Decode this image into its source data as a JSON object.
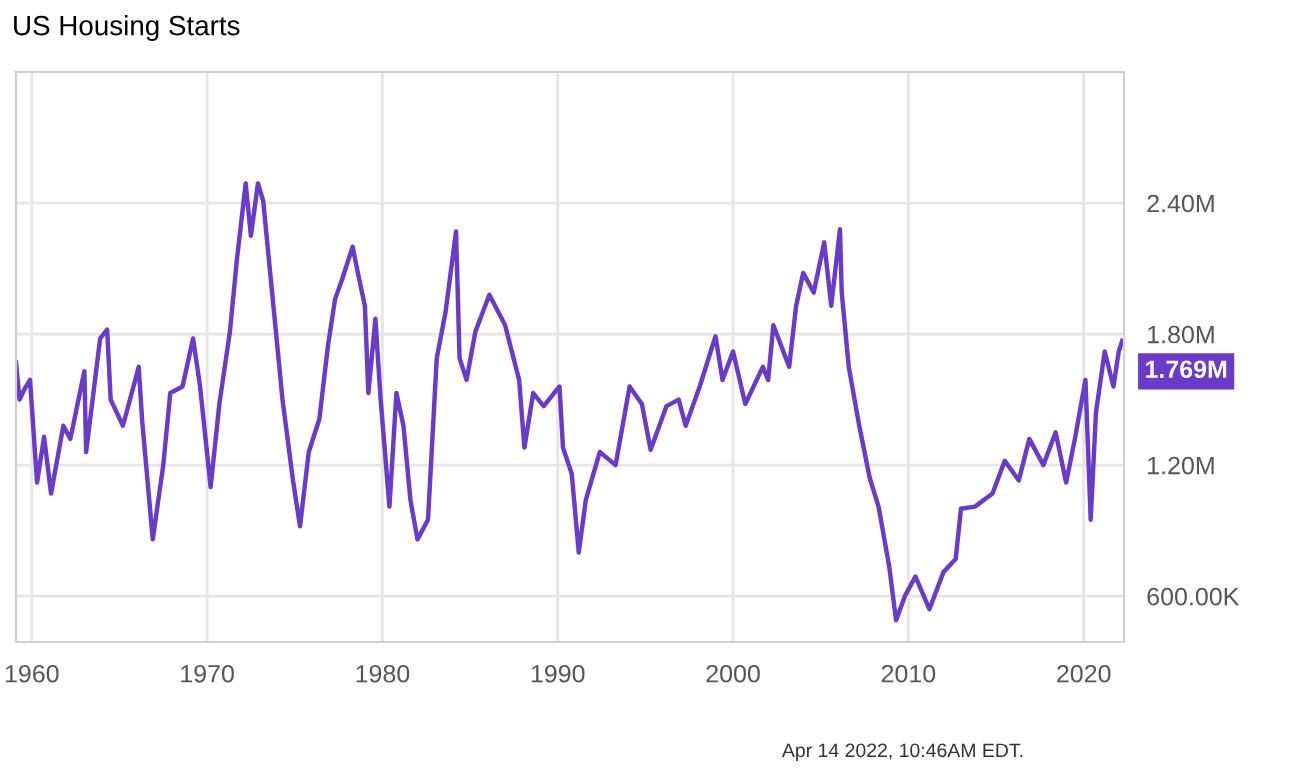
{
  "chart_data": {
    "type": "line",
    "title": "US Housing Starts",
    "x": [
      1959.1,
      1959.3,
      1959.6,
      1959.9,
      1960.3,
      1960.7,
      1961.1,
      1961.8,
      1962.2,
      1963.0,
      1963.1,
      1963.9,
      1964.3,
      1964.5,
      1965.2,
      1966.1,
      1966.3,
      1966.9,
      1967.5,
      1967.9,
      1968.6,
      1969.2,
      1969.6,
      1970.2,
      1970.7,
      1971.3,
      1971.7,
      1972.2,
      1972.5,
      1972.9,
      1973.2,
      1973.6,
      1974.0,
      1974.3,
      1974.9,
      1975.3,
      1975.8,
      1976.4,
      1976.9,
      1977.3,
      1977.7,
      1978.3,
      1978.6,
      1979.0,
      1979.2,
      1979.6,
      1979.9,
      1980.4,
      1980.8,
      1981.2,
      1981.6,
      1982.0,
      1982.6,
      1983.1,
      1983.6,
      1984.2,
      1984.4,
      1984.8,
      1985.3,
      1986.1,
      1987.0,
      1987.8,
      1988.1,
      1988.6,
      1989.2,
      1990.1,
      1990.3,
      1990.8,
      1991.2,
      1991.6,
      1992.4,
      1993.3,
      1994.1,
      1994.8,
      1995.3,
      1996.2,
      1996.9,
      1997.3,
      1998.1,
      1999.0,
      1999.4,
      2000.0,
      2000.7,
      2001.7,
      2002.0,
      2002.3,
      2003.2,
      2003.6,
      2004.0,
      2004.6,
      2005.2,
      2005.6,
      2006.1,
      2006.2,
      2006.6,
      2007.2,
      2007.8,
      2008.3,
      2008.9,
      2009.3,
      2009.8,
      2010.4,
      2011.2,
      2012.0,
      2012.7,
      2013.0,
      2013.8,
      2014.8,
      2015.5,
      2016.3,
      2016.9,
      2017.7,
      2018.4,
      2019.0,
      2019.5,
      2020.1,
      2020.4,
      2020.7,
      2021.2,
      2021.7,
      2022.0,
      2022.2
    ],
    "series": [
      {
        "color": "#6a3bc9",
        "values": [
          1670000,
          1500000,
          1550000,
          1590000,
          1120000,
          1330000,
          1070000,
          1380000,
          1320000,
          1630000,
          1260000,
          1780000,
          1820000,
          1500000,
          1380000,
          1650000,
          1400000,
          860000,
          1200000,
          1530000,
          1560000,
          1780000,
          1560000,
          1100000,
          1480000,
          1810000,
          2140000,
          2490000,
          2250000,
          2490000,
          2410000,
          2080000,
          1750000,
          1500000,
          1130000,
          920000,
          1260000,
          1410000,
          1750000,
          1960000,
          2050000,
          2200000,
          2080000,
          1930000,
          1530000,
          1870000,
          1500000,
          1010000,
          1530000,
          1380000,
          1040000,
          860000,
          950000,
          1690000,
          1900000,
          2270000,
          1690000,
          1590000,
          1810000,
          1980000,
          1840000,
          1590000,
          1280000,
          1530000,
          1470000,
          1560000,
          1280000,
          1160000,
          800000,
          1040000,
          1260000,
          1200000,
          1560000,
          1480000,
          1270000,
          1470000,
          1500000,
          1380000,
          1560000,
          1790000,
          1590000,
          1720000,
          1480000,
          1650000,
          1590000,
          1840000,
          1650000,
          1930000,
          2080000,
          1990000,
          2220000,
          1930000,
          2280000,
          1990000,
          1650000,
          1380000,
          1140000,
          1010000,
          740000,
          490000,
          600000,
          690000,
          540000,
          710000,
          770000,
          1000000,
          1010000,
          1070000,
          1220000,
          1130000,
          1320000,
          1200000,
          1350000,
          1120000,
          1320000,
          1590000,
          950000,
          1440000,
          1720000,
          1560000,
          1720000,
          1769000
        ]
      }
    ],
    "xlim": [
      1959.1,
      2022.3
    ],
    "xticks": [
      1960,
      1970,
      1980,
      1990,
      2000,
      2010,
      2020
    ],
    "ylim": [
      390000,
      3000000
    ],
    "yticks": [
      {
        "value": 600000,
        "label": "600.00K"
      },
      {
        "value": 1200000,
        "label": "1.20M"
      },
      {
        "value": 1800000,
        "label": "1.80M"
      },
      {
        "value": 2400000,
        "label": "2.40M"
      }
    ],
    "grid": true,
    "marker": "none",
    "line_style": "solid",
    "annotations": [
      {
        "text": "1.769M",
        "x": 2022.2,
        "y": 1769000
      },
      "Apr 14 2022, 10:46AM EDT."
    ]
  }
}
